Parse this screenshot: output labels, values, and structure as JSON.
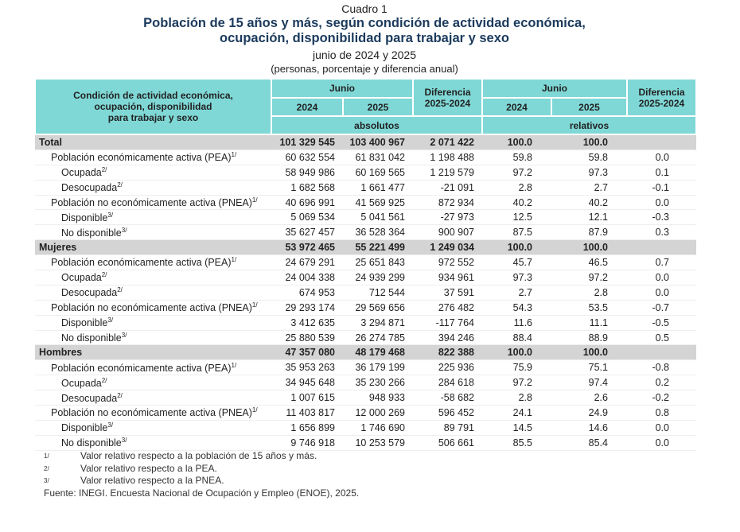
{
  "header": {
    "label": "Cuadro 1",
    "title_lines": [
      "Población de 15 años y más, según condición de actividad económica,",
      "ocupación, disponibilidad para trabajar y sexo"
    ],
    "period": "junio de 2024 y 2025",
    "units": "(personas, porcentaje y diferencia anual)"
  },
  "table": {
    "stub_lines": [
      "Condición de actividad económica,",
      "ocupación, disponibilidad",
      "para trabajar y sexo"
    ],
    "absolute": {
      "group": "Junio",
      "years": [
        "2024",
        "2025"
      ],
      "diff_lines": [
        "Diferencia",
        "2025-2024"
      ],
      "unit": "absolutos"
    },
    "relative": {
      "group": "Junio",
      "years": [
        "2024",
        "2025"
      ],
      "diff_lines": [
        "Diferencia",
        "2025-2024"
      ],
      "unit": "relativos"
    },
    "sections": [
      {
        "label": "Total",
        "values": [
          "101 329 545",
          "103 400 967",
          "2 071 422",
          "100.0",
          "100.0"
        ],
        "groups": [
          {
            "label": "Población económicamente activa (PEA)",
            "note": "1/",
            "values": [
              "60 632 554",
              "61 831 042",
              "1 198 488",
              "59.8",
              "59.8",
              "0.0"
            ],
            "items": [
              {
                "label": "Ocupada",
                "note": "2/",
                "values": [
                  "58 949 986",
                  "60 169 565",
                  "1 219 579",
                  "97.2",
                  "97.3",
                  "0.1"
                ]
              },
              {
                "label": "Desocupada",
                "note": "2/",
                "values": [
                  "1 682 568",
                  "1 661 477",
                  "-21 091",
                  "2.8",
                  "2.7",
                  "-0.1"
                ]
              }
            ]
          },
          {
            "label": "Población no económicamente activa (PNEA)",
            "note": "1/",
            "values": [
              "40 696 991",
              "41 569 925",
              "872 934",
              "40.2",
              "40.2",
              "0.0"
            ],
            "items": [
              {
                "label": "Disponible",
                "note": "3/",
                "values": [
                  "5 069 534",
                  "5 041 561",
                  "-27 973",
                  "12.5",
                  "12.1",
                  "-0.3"
                ]
              },
              {
                "label": "No disponible",
                "note": "3/",
                "values": [
                  "35 627 457",
                  "36 528 364",
                  "900 907",
                  "87.5",
                  "87.9",
                  "0.3"
                ]
              }
            ]
          }
        ]
      },
      {
        "label": "Mujeres",
        "values": [
          "53 972 465",
          "55 221 499",
          "1 249 034",
          "100.0",
          "100.0"
        ],
        "groups": [
          {
            "label": "Población económicamente activa (PEA)",
            "note": "1/",
            "values": [
              "24 679 291",
              "25 651 843",
              "972 552",
              "45.7",
              "46.5",
              "0.7"
            ],
            "items": [
              {
                "label": "Ocupada",
                "note": "2/",
                "values": [
                  "24 004 338",
                  "24 939 299",
                  "934 961",
                  "97.3",
                  "97.2",
                  "0.0"
                ]
              },
              {
                "label": "Desocupada",
                "note": "2/",
                "values": [
                  "674 953",
                  "712 544",
                  "37 591",
                  "2.7",
                  "2.8",
                  "0.0"
                ]
              }
            ]
          },
          {
            "label": "Población no económicamente activa (PNEA)",
            "note": "1/",
            "values": [
              "29 293 174",
              "29 569 656",
              "276 482",
              "54.3",
              "53.5",
              "-0.7"
            ],
            "items": [
              {
                "label": "Disponible",
                "note": "3/",
                "values": [
                  "3 412 635",
                  "3 294 871",
                  "-117 764",
                  "11.6",
                  "11.1",
                  "-0.5"
                ]
              },
              {
                "label": "No disponible",
                "note": "3/",
                "values": [
                  "25 880 539",
                  "26 274 785",
                  "394 246",
                  "88.4",
                  "88.9",
                  "0.5"
                ]
              }
            ]
          }
        ]
      },
      {
        "label": "Hombres",
        "values": [
          "47 357 080",
          "48 179 468",
          "822 388",
          "100.0",
          "100.0"
        ],
        "groups": [
          {
            "label": "Población económicamente activa (PEA)",
            "note": "1/",
            "values": [
              "35 953 263",
              "36 179 199",
              "225 936",
              "75.9",
              "75.1",
              "-0.8"
            ],
            "items": [
              {
                "label": "Ocupada",
                "note": "2/",
                "values": [
                  "34 945 648",
                  "35 230 266",
                  "284 618",
                  "97.2",
                  "97.4",
                  "0.2"
                ]
              },
              {
                "label": "Desocupada",
                "note": "2/",
                "values": [
                  "1 007 615",
                  "948 933",
                  "-58 682",
                  "2.8",
                  "2.6",
                  "-0.2"
                ]
              }
            ]
          },
          {
            "label": "Población no económicamente activa (PNEA)",
            "note": "1/",
            "values": [
              "11 403 817",
              "12 000 269",
              "596 452",
              "24.1",
              "24.9",
              "0.8"
            ],
            "items": [
              {
                "label": "Disponible",
                "note": "3/",
                "values": [
                  "1 656 899",
                  "1 746 690",
                  "89 791",
                  "14.5",
                  "14.6",
                  "0.0"
                ]
              },
              {
                "label": "No disponible",
                "note": "3/",
                "values": [
                  "9 746 918",
                  "10 253 579",
                  "506 661",
                  "85.5",
                  "85.4",
                  "0.0"
                ]
              }
            ]
          }
        ]
      }
    ]
  },
  "footnotes": [
    {
      "mark": "1/",
      "text": "Valor relativo respecto a la población de 15 años y más."
    },
    {
      "mark": "2/",
      "text": "Valor relativo respecto a la PEA."
    },
    {
      "mark": "3/",
      "text": "Valor relativo respecto a la PNEA."
    }
  ],
  "source": "Fuente: INEGI. Encuesta Nacional de Ocupación y Empleo (ENOE), 2025."
}
